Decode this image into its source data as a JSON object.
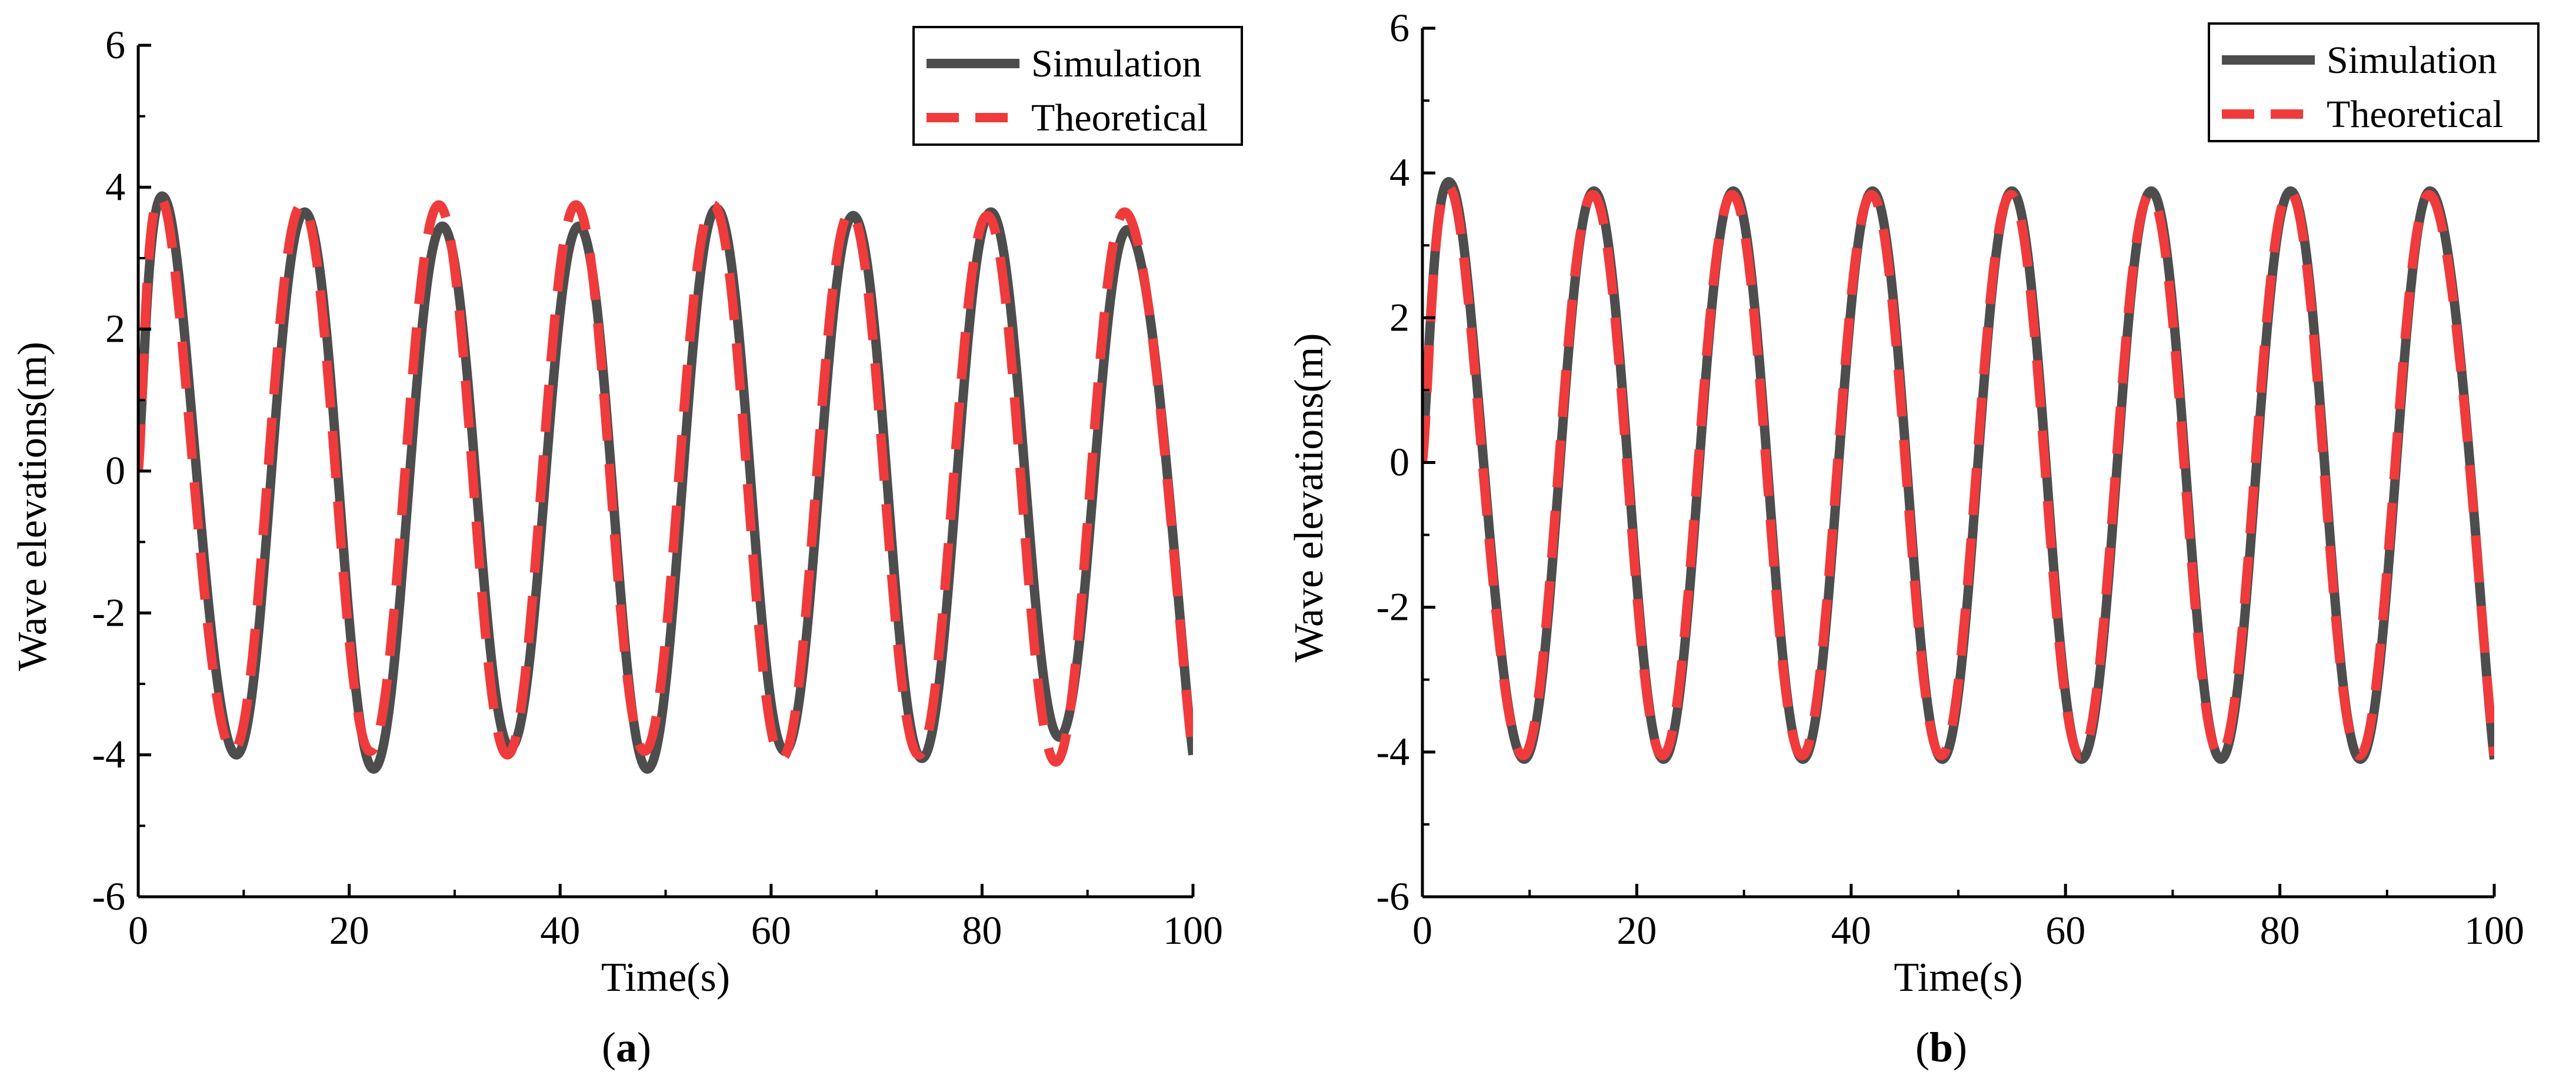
{
  "colors": {
    "simulation": "#4d4d4d",
    "theoretical": "#ef3b3b",
    "axis": "#000000"
  },
  "chart_data": [
    {
      "type": "line",
      "panel": "a",
      "caption": {
        "open": "(",
        "letter": "a",
        "close": ")"
      },
      "xlabel": "Time(s)",
      "ylabel": "Wave elevations(m)",
      "xlim": [
        0,
        100
      ],
      "ylim": [
        -6,
        6
      ],
      "xticks": [
        0,
        20,
        40,
        60,
        80,
        100
      ],
      "yticks": [
        -6,
        -4,
        -2,
        0,
        2,
        4,
        6
      ],
      "grid": false,
      "legend_position": "top-right",
      "series": [
        {
          "name": "Simulation",
          "style": "solid",
          "points": [
            [
              0,
              0.2
            ],
            [
              2.8,
              3.75
            ],
            [
              9.3,
              -4.0
            ],
            [
              15.8,
              3.65
            ],
            [
              22.3,
              -4.2
            ],
            [
              28.8,
              3.45
            ],
            [
              35.3,
              -3.9
            ],
            [
              41.8,
              3.45
            ],
            [
              48.3,
              -4.2
            ],
            [
              54.8,
              3.7
            ],
            [
              61.3,
              -3.95
            ],
            [
              67.8,
              3.6
            ],
            [
              74.3,
              -4.05
            ],
            [
              80.8,
              3.65
            ],
            [
              87.3,
              -3.75
            ],
            [
              93.8,
              3.4
            ],
            [
              100,
              -4.0
            ]
          ]
        },
        {
          "name": "Theoretical",
          "style": "dashed",
          "points": [
            [
              0,
              0.0
            ],
            [
              2.5,
              3.75
            ],
            [
              9.0,
              -3.95
            ],
            [
              15.5,
              3.75
            ],
            [
              22.0,
              -3.95
            ],
            [
              28.5,
              3.75
            ],
            [
              35.0,
              -4.0
            ],
            [
              41.5,
              3.75
            ],
            [
              48.0,
              -3.95
            ],
            [
              54.5,
              3.75
            ],
            [
              61.0,
              -4.05
            ],
            [
              67.5,
              3.65
            ],
            [
              74.0,
              -4.0
            ],
            [
              80.5,
              3.6
            ],
            [
              87.0,
              -4.1
            ],
            [
              93.5,
              3.65
            ],
            [
              100,
              -4.05
            ]
          ]
        }
      ]
    },
    {
      "type": "line",
      "panel": "b",
      "caption": {
        "open": "(",
        "letter": "b",
        "close": ")"
      },
      "xlabel": "Time(s)",
      "ylabel": "Wave elevations(m)",
      "xlim": [
        0,
        100
      ],
      "ylim": [
        -6,
        6
      ],
      "xticks": [
        0,
        20,
        40,
        60,
        80,
        100
      ],
      "yticks": [
        -6,
        -4,
        -2,
        0,
        2,
        4,
        6
      ],
      "grid": false,
      "legend_position": "top-right",
      "series": [
        {
          "name": "Simulation",
          "style": "solid",
          "points": [
            [
              0,
              0.2
            ],
            [
              3.0,
              3.75
            ],
            [
              9.5,
              -4.1
            ],
            [
              16.0,
              3.75
            ],
            [
              22.5,
              -4.1
            ],
            [
              29.0,
              3.75
            ],
            [
              35.5,
              -4.1
            ],
            [
              42.0,
              3.75
            ],
            [
              48.5,
              -4.1
            ],
            [
              55.0,
              3.75
            ],
            [
              61.5,
              -4.1
            ],
            [
              68.0,
              3.75
            ],
            [
              74.5,
              -4.1
            ],
            [
              81.0,
              3.75
            ],
            [
              87.5,
              -4.1
            ],
            [
              94.0,
              3.75
            ],
            [
              100,
              -4.1
            ]
          ]
        },
        {
          "name": "Theoretical",
          "style": "dashed",
          "points": [
            [
              0,
              0.0
            ],
            [
              2.9,
              3.7
            ],
            [
              9.4,
              -4.05
            ],
            [
              15.9,
              3.7
            ],
            [
              22.4,
              -4.05
            ],
            [
              28.9,
              3.7
            ],
            [
              35.4,
              -4.05
            ],
            [
              41.9,
              3.7
            ],
            [
              48.4,
              -4.05
            ],
            [
              54.9,
              3.7
            ],
            [
              61.4,
              -4.05
            ],
            [
              67.9,
              3.7
            ],
            [
              74.4,
              -4.05
            ],
            [
              80.9,
              3.75
            ],
            [
              87.4,
              -4.05
            ],
            [
              93.9,
              3.7
            ],
            [
              100,
              -4.05
            ]
          ]
        }
      ]
    }
  ]
}
